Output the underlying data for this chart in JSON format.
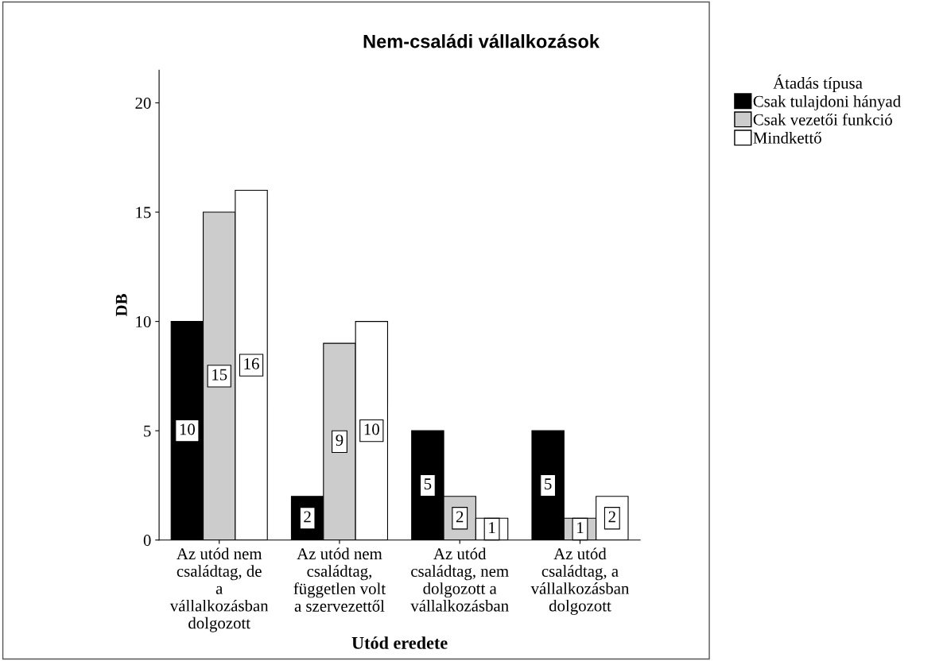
{
  "chart_data": {
    "type": "bar",
    "title": "Nem-családi vállalkozások",
    "xlabel": "Utód eredete",
    "ylabel": "DB",
    "legend_title": "Átadás típusa",
    "categories": [
      "Az utód nem családtag, de a vállalkozásban dolgozott",
      "Az utód nem családtag, független volt a szervezettől",
      "Az utód családtag, nem dolgozott a vállalkozásban",
      "Az utód családtag, a vállalkozásban dolgozott"
    ],
    "series": [
      {
        "name": "Csak tulajdoni hányad",
        "color": "#000000",
        "values": [
          10,
          2,
          5,
          5
        ]
      },
      {
        "name": "Csak vezetői funkció",
        "color": "#cccccc",
        "values": [
          15,
          9,
          2,
          1
        ]
      },
      {
        "name": "Mindkettő",
        "color": "#ffffff",
        "values": [
          16,
          10,
          1,
          2
        ]
      }
    ],
    "ylim": [
      0,
      21.5
    ],
    "yticks": [
      0,
      5,
      10,
      15,
      20
    ],
    "grid": false,
    "legend": "right",
    "data_labels": true
  }
}
